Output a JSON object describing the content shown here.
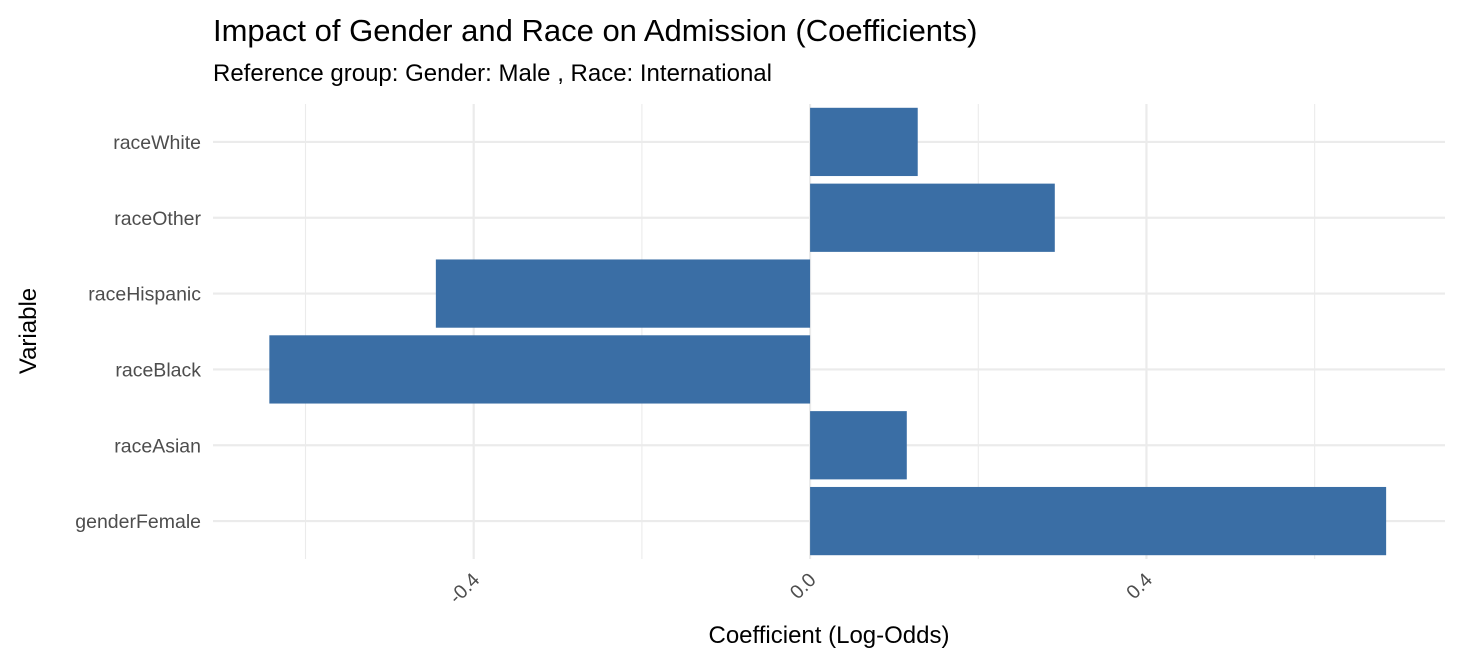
{
  "chart_data": {
    "type": "bar",
    "orientation": "horizontal",
    "title": "Impact of Gender and Race on Admission (Coefficients)",
    "subtitle": "Reference group: Gender: Male , Race: International",
    "xlabel": "Coefficient (Log-Odds)",
    "ylabel": "Variable",
    "categories": [
      "genderFemale",
      "raceAsian",
      "raceBlack",
      "raceHispanic",
      "raceOther",
      "raceWhite"
    ],
    "values": [
      0.685,
      0.115,
      -0.643,
      -0.445,
      0.291,
      0.128
    ],
    "xlim": [
      -0.71,
      0.755
    ],
    "x_ticks": [
      -0.4,
      0.0,
      0.4
    ],
    "x_tick_labels": [
      "-0.4",
      "0.0",
      "0.4"
    ],
    "x_minor_ticks": [
      -0.6,
      -0.2,
      0.2,
      0.6
    ],
    "grid": true,
    "bar_color": "#3a6ea5",
    "theme": "minimal"
  }
}
